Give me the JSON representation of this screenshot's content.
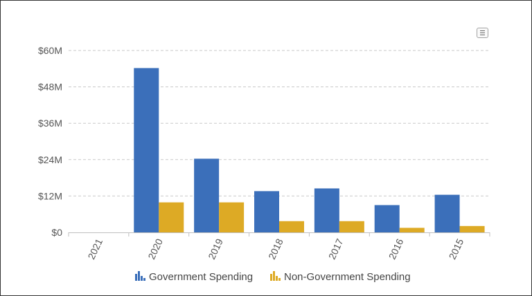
{
  "colors": {
    "government": "#3b6fba",
    "non_government": "#ddaa25"
  },
  "menu": {
    "icon": "hamburger-menu-icon"
  },
  "chart_data": {
    "type": "bar",
    "title": "",
    "xlabel": "",
    "ylabel": "",
    "categories": [
      "2021",
      "2020",
      "2019",
      "2018",
      "2017",
      "2016",
      "2015"
    ],
    "series": [
      {
        "name": "Government Spending",
        "values": [
          0,
          54.2,
          24.3,
          13.6,
          14.5,
          9.0,
          12.4
        ]
      },
      {
        "name": "Non-Government Spending",
        "values": [
          0,
          9.9,
          9.9,
          3.7,
          3.7,
          1.5,
          2.1
        ]
      }
    ],
    "yticks": [
      0,
      12,
      24,
      36,
      48,
      60
    ],
    "ytick_labels": [
      "$0",
      "$12M",
      "$24M",
      "$36M",
      "$48M",
      "$60M"
    ],
    "ylim": [
      0,
      60
    ],
    "value_unit": "millions USD",
    "grid": true,
    "legend_position": "bottom-center"
  }
}
